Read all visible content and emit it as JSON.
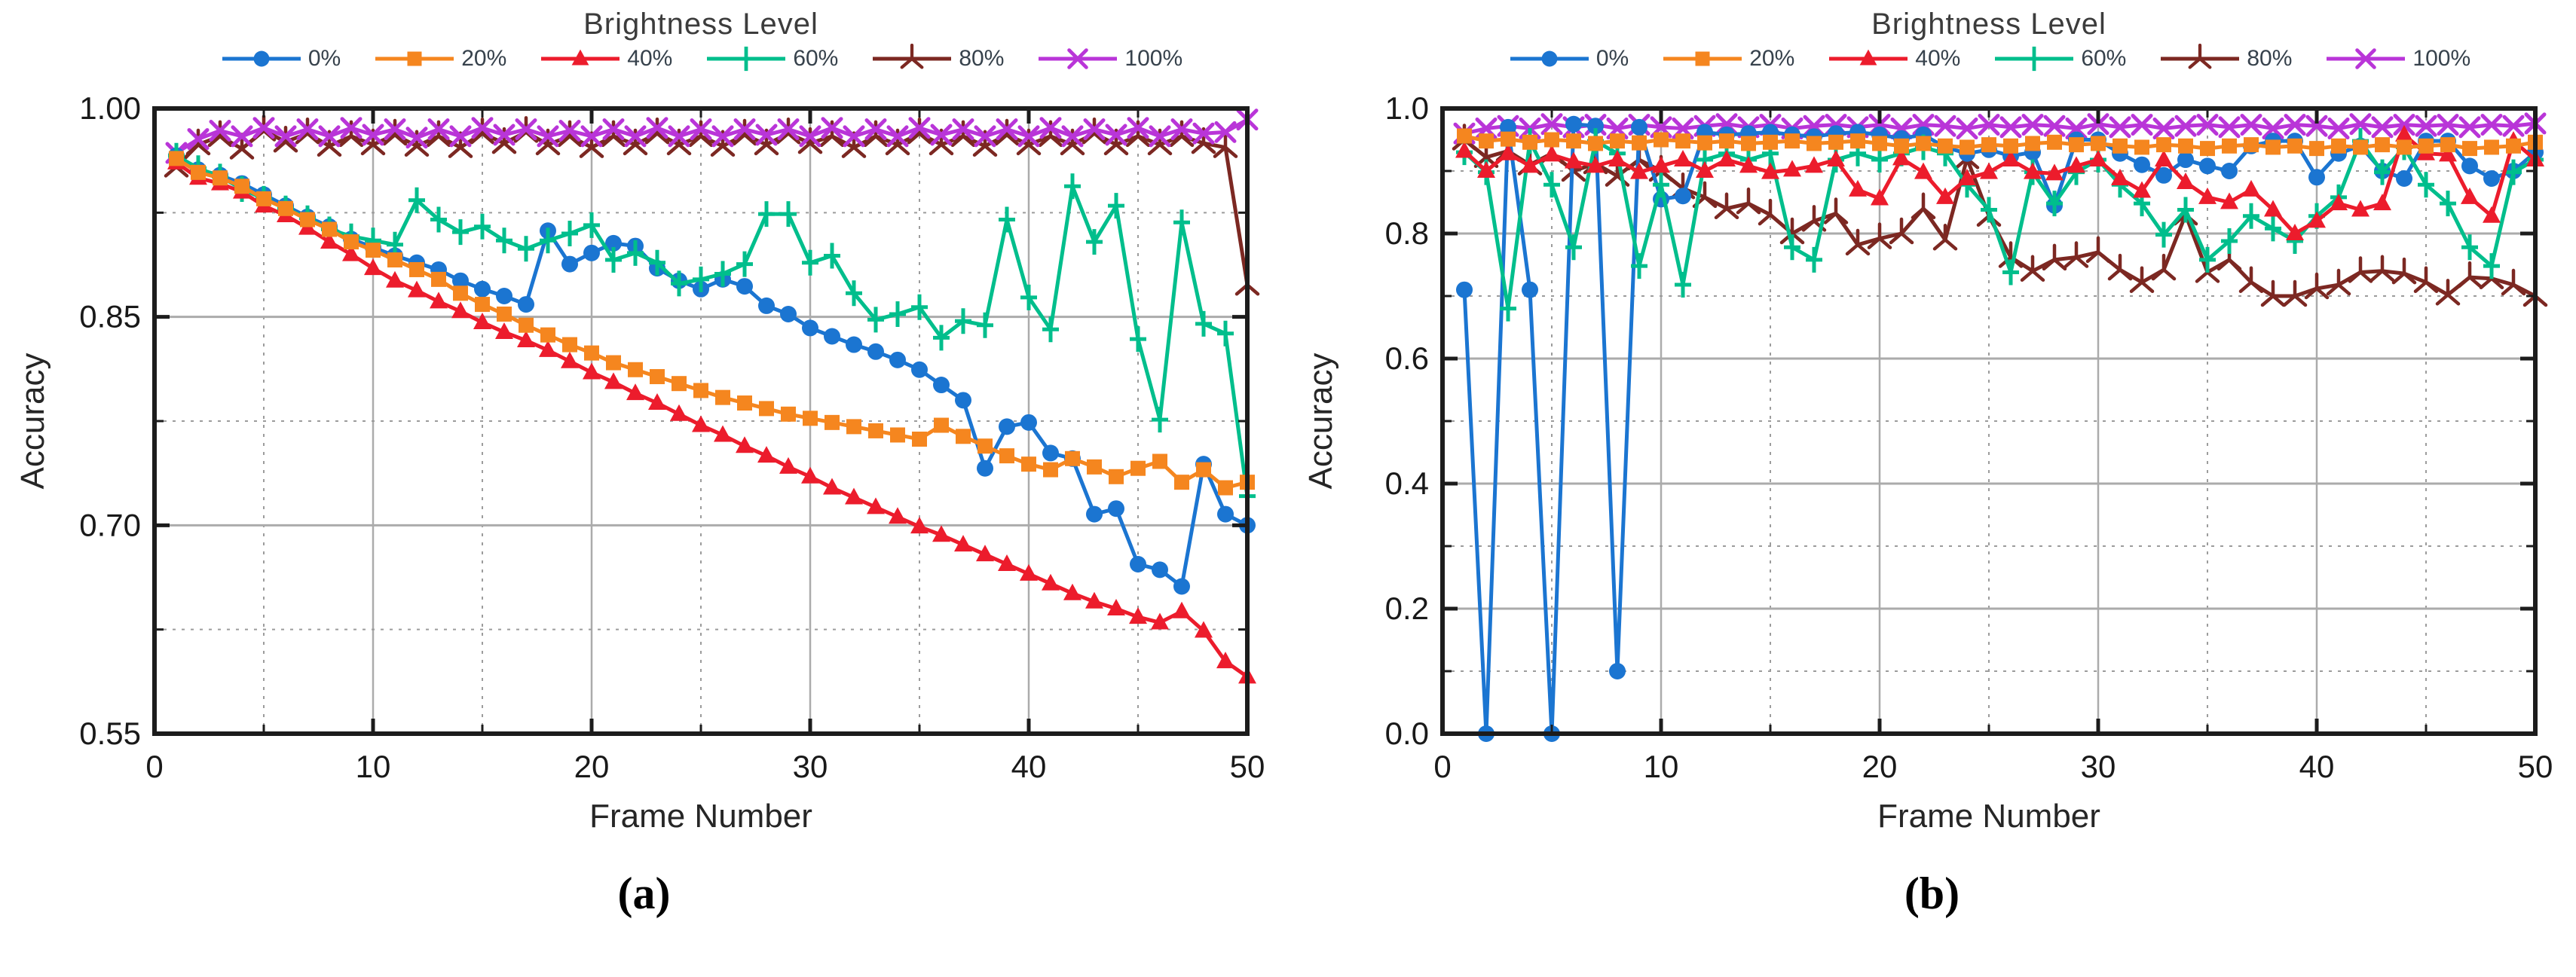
{
  "figure": {
    "background": "#ffffff",
    "frame_color": "#1c1c1c",
    "grid_solid_color": "#ababab",
    "grid_dashed_color": "#9c9c9c"
  },
  "chart_data": [
    {
      "type": "line",
      "title": "Brightness Level",
      "xlabel": "Frame Number",
      "ylabel": "Accuracy",
      "caption": "(a)",
      "legend_position": "top",
      "xlim": [
        0,
        50
      ],
      "ylim": [
        0.55,
        1.0
      ],
      "x_start": 1,
      "xticks": [
        0,
        10,
        20,
        30,
        40,
        50
      ],
      "xticks_minor": [
        5,
        15,
        25,
        35,
        45
      ],
      "ytick_values": [
        1.0,
        0.85,
        0.7,
        0.55
      ],
      "ytick_labels": [
        "1.00",
        "0.85",
        "0.70",
        "0.55"
      ],
      "yticks_minor": [
        0.925,
        0.775,
        0.625
      ],
      "grid": {
        "h_solid": [
          0.85,
          0.7
        ],
        "h_dashed": [
          0.925,
          0.775,
          0.625
        ],
        "v_solid": [
          10,
          20,
          30,
          40
        ],
        "v_dashed": [
          5,
          15,
          25,
          35,
          45
        ]
      },
      "draw_order": [
        4,
        5,
        0,
        3,
        2,
        1
      ],
      "series": [
        {
          "name": "0%",
          "color": "#1b75d1",
          "marker": "circle",
          "values": [
            0.966,
            0.956,
            0.952,
            0.946,
            0.938,
            0.93,
            0.922,
            0.915,
            0.906,
            0.9,
            0.894,
            0.889,
            0.884,
            0.876,
            0.87,
            0.865,
            0.859,
            0.912,
            0.888,
            0.896,
            0.903,
            0.901,
            0.885,
            0.876,
            0.87,
            0.877,
            0.872,
            0.858,
            0.852,
            0.842,
            0.836,
            0.83,
            0.825,
            0.819,
            0.812,
            0.801,
            0.79,
            0.741,
            0.771,
            0.774,
            0.752,
            0.748,
            0.708,
            0.712,
            0.672,
            0.668,
            0.656,
            0.744,
            0.708,
            0.7
          ]
        },
        {
          "name": "20%",
          "color": "#f5861f",
          "marker": "square",
          "values": [
            0.964,
            0.954,
            0.95,
            0.944,
            0.935,
            0.928,
            0.92,
            0.913,
            0.904,
            0.898,
            0.891,
            0.884,
            0.877,
            0.867,
            0.859,
            0.852,
            0.844,
            0.837,
            0.83,
            0.824,
            0.817,
            0.812,
            0.807,
            0.802,
            0.797,
            0.792,
            0.788,
            0.784,
            0.78,
            0.777,
            0.774,
            0.771,
            0.768,
            0.765,
            0.762,
            0.772,
            0.764,
            0.757,
            0.75,
            0.744,
            0.74,
            0.748,
            0.742,
            0.735,
            0.741,
            0.746,
            0.731,
            0.74,
            0.727,
            0.731
          ]
        },
        {
          "name": "40%",
          "color": "#ec1c2c",
          "marker": "triangle",
          "values": [
            0.961,
            0.95,
            0.946,
            0.94,
            0.93,
            0.923,
            0.914,
            0.904,
            0.895,
            0.885,
            0.876,
            0.869,
            0.861,
            0.854,
            0.846,
            0.839,
            0.833,
            0.826,
            0.818,
            0.81,
            0.803,
            0.795,
            0.788,
            0.78,
            0.772,
            0.765,
            0.757,
            0.75,
            0.742,
            0.735,
            0.727,
            0.72,
            0.713,
            0.706,
            0.699,
            0.693,
            0.686,
            0.679,
            0.672,
            0.665,
            0.658,
            0.651,
            0.645,
            0.64,
            0.634,
            0.63,
            0.638,
            0.624,
            0.602,
            0.591
          ]
        },
        {
          "name": "60%",
          "color": "#00be8c",
          "marker": "plus",
          "values": [
            0.966,
            0.957,
            0.951,
            0.942,
            0.935,
            0.928,
            0.921,
            0.913,
            0.908,
            0.905,
            0.902,
            0.934,
            0.92,
            0.911,
            0.915,
            0.905,
            0.899,
            0.905,
            0.91,
            0.916,
            0.891,
            0.896,
            0.889,
            0.874,
            0.877,
            0.881,
            0.888,
            0.924,
            0.924,
            0.889,
            0.894,
            0.867,
            0.848,
            0.852,
            0.857,
            0.835,
            0.847,
            0.844,
            0.92,
            0.864,
            0.841,
            0.944,
            0.904,
            0.93,
            0.834,
            0.776,
            0.918,
            0.845,
            0.838,
            0.721
          ]
        },
        {
          "name": "80%",
          "color": "#7c2822",
          "marker": "star",
          "values": [
            0.958,
            0.974,
            0.98,
            0.971,
            0.984,
            0.976,
            0.982,
            0.973,
            0.98,
            0.974,
            0.981,
            0.973,
            0.98,
            0.972,
            0.982,
            0.975,
            0.983,
            0.974,
            0.98,
            0.972,
            0.98,
            0.974,
            0.982,
            0.974,
            0.98,
            0.973,
            0.981,
            0.974,
            0.982,
            0.975,
            0.98,
            0.972,
            0.98,
            0.974,
            0.982,
            0.974,
            0.98,
            0.973,
            0.981,
            0.974,
            0.98,
            0.974,
            0.982,
            0.974,
            0.98,
            0.974,
            0.98,
            0.975,
            0.972,
            0.873
          ]
        },
        {
          "name": "100%",
          "color": "#b935d8",
          "marker": "x",
          "values": [
            0.968,
            0.978,
            0.984,
            0.98,
            0.986,
            0.98,
            0.985,
            0.98,
            0.986,
            0.981,
            0.985,
            0.979,
            0.985,
            0.98,
            0.986,
            0.981,
            0.985,
            0.98,
            0.984,
            0.98,
            0.985,
            0.98,
            0.986,
            0.98,
            0.985,
            0.98,
            0.985,
            0.981,
            0.985,
            0.98,
            0.986,
            0.98,
            0.985,
            0.98,
            0.986,
            0.981,
            0.985,
            0.98,
            0.985,
            0.98,
            0.986,
            0.98,
            0.985,
            0.981,
            0.986,
            0.98,
            0.985,
            0.982,
            0.983,
            0.992
          ]
        }
      ]
    },
    {
      "type": "line",
      "title": "Brightness Level",
      "xlabel": "Frame Number",
      "ylabel": "Accuracy",
      "caption": "(b)",
      "legend_position": "top",
      "xlim": [
        0,
        50
      ],
      "ylim": [
        0.0,
        1.0
      ],
      "x_start": 1,
      "xticks": [
        0,
        10,
        20,
        30,
        40,
        50
      ],
      "xticks_minor": [
        5,
        15,
        25,
        35,
        45
      ],
      "ytick_values": [
        1.0,
        0.8,
        0.6,
        0.4,
        0.2,
        0.0
      ],
      "ytick_labels": [
        "1.0",
        "0.8",
        "0.6",
        "0.4",
        "0.2",
        "0.0"
      ],
      "yticks_minor": [
        0.9,
        0.7,
        0.5,
        0.3,
        0.1
      ],
      "grid": {
        "h_solid": [
          0.8,
          0.6,
          0.4,
          0.2
        ],
        "h_dashed": [
          0.9,
          0.7,
          0.5,
          0.3,
          0.1
        ],
        "v_solid": [
          10,
          20,
          30,
          40
        ],
        "v_dashed": [
          5,
          15,
          25,
          35,
          45
        ]
      },
      "draw_order": [
        4,
        5,
        0,
        3,
        2,
        1
      ],
      "series": [
        {
          "name": "0%",
          "color": "#1b75d1",
          "marker": "circle",
          "values": [
            0.71,
            0.0,
            0.97,
            0.71,
            0.0,
            0.975,
            0.972,
            0.1,
            0.97,
            0.855,
            0.86,
            0.962,
            0.958,
            0.96,
            0.962,
            0.958,
            0.955,
            0.96,
            0.962,
            0.958,
            0.952,
            0.958,
            0.938,
            0.928,
            0.934,
            0.924,
            0.93,
            0.845,
            0.95,
            0.95,
            0.928,
            0.91,
            0.893,
            0.918,
            0.908,
            0.9,
            0.94,
            0.948,
            0.948,
            0.89,
            0.928,
            0.94,
            0.9,
            0.888,
            0.948,
            0.948,
            0.908,
            0.888,
            0.9,
            0.93
          ]
        },
        {
          "name": "20%",
          "color": "#f5861f",
          "marker": "square",
          "values": [
            0.956,
            0.948,
            0.951,
            0.946,
            0.95,
            0.948,
            0.944,
            0.948,
            0.945,
            0.95,
            0.948,
            0.945,
            0.948,
            0.944,
            0.946,
            0.948,
            0.944,
            0.946,
            0.948,
            0.944,
            0.94,
            0.944,
            0.94,
            0.938,
            0.942,
            0.94,
            0.944,
            0.946,
            0.942,
            0.944,
            0.94,
            0.938,
            0.942,
            0.94,
            0.936,
            0.94,
            0.942,
            0.938,
            0.94,
            0.936,
            0.94,
            0.938,
            0.942,
            0.938,
            0.94,
            0.942,
            0.936,
            0.938,
            0.94,
            0.946
          ]
        },
        {
          "name": "40%",
          "color": "#ec1c2c",
          "marker": "triangle",
          "values": [
            0.932,
            0.9,
            0.928,
            0.908,
            0.926,
            0.915,
            0.908,
            0.918,
            0.898,
            0.908,
            0.918,
            0.9,
            0.918,
            0.908,
            0.898,
            0.902,
            0.908,
            0.918,
            0.87,
            0.856,
            0.92,
            0.898,
            0.858,
            0.888,
            0.898,
            0.918,
            0.898,
            0.896,
            0.908,
            0.918,
            0.888,
            0.868,
            0.918,
            0.882,
            0.858,
            0.85,
            0.87,
            0.838,
            0.8,
            0.82,
            0.848,
            0.838,
            0.848,
            0.958,
            0.928,
            0.926,
            0.858,
            0.828,
            0.948,
            0.918
          ]
        },
        {
          "name": "60%",
          "color": "#00be8c",
          "marker": "plus",
          "values": [
            0.93,
            0.898,
            0.68,
            0.948,
            0.878,
            0.778,
            0.948,
            0.928,
            0.748,
            0.878,
            0.718,
            0.918,
            0.928,
            0.918,
            0.928,
            0.778,
            0.758,
            0.918,
            0.928,
            0.918,
            0.928,
            0.938,
            0.928,
            0.878,
            0.838,
            0.738,
            0.898,
            0.848,
            0.898,
            0.918,
            0.878,
            0.848,
            0.798,
            0.838,
            0.758,
            0.788,
            0.828,
            0.808,
            0.788,
            0.828,
            0.858,
            0.948,
            0.898,
            0.938,
            0.878,
            0.848,
            0.778,
            0.748,
            0.898,
            0.918
          ]
        },
        {
          "name": "80%",
          "color": "#7c2822",
          "marker": "star",
          "values": [
            0.95,
            0.922,
            0.932,
            0.91,
            0.928,
            0.9,
            0.912,
            0.892,
            0.918,
            0.9,
            0.872,
            0.858,
            0.84,
            0.848,
            0.83,
            0.8,
            0.82,
            0.832,
            0.782,
            0.792,
            0.8,
            0.84,
            0.79,
            0.92,
            0.828,
            0.762,
            0.74,
            0.758,
            0.762,
            0.77,
            0.742,
            0.722,
            0.742,
            0.83,
            0.738,
            0.758,
            0.722,
            0.7,
            0.7,
            0.712,
            0.718,
            0.738,
            0.74,
            0.736,
            0.722,
            0.702,
            0.73,
            0.728,
            0.718,
            0.7
          ]
        },
        {
          "name": "100%",
          "color": "#b935d8",
          "marker": "x",
          "values": [
            0.96,
            0.968,
            0.972,
            0.968,
            0.975,
            0.97,
            0.974,
            0.968,
            0.974,
            0.97,
            0.968,
            0.972,
            0.975,
            0.97,
            0.974,
            0.968,
            0.972,
            0.974,
            0.97,
            0.974,
            0.968,
            0.974,
            0.972,
            0.968,
            0.974,
            0.97,
            0.974,
            0.972,
            0.968,
            0.975,
            0.97,
            0.974,
            0.968,
            0.972,
            0.974,
            0.97,
            0.974,
            0.968,
            0.974,
            0.972,
            0.968,
            0.975,
            0.97,
            0.974,
            0.972,
            0.974,
            0.97,
            0.974,
            0.972,
            0.976
          ]
        }
      ]
    }
  ]
}
